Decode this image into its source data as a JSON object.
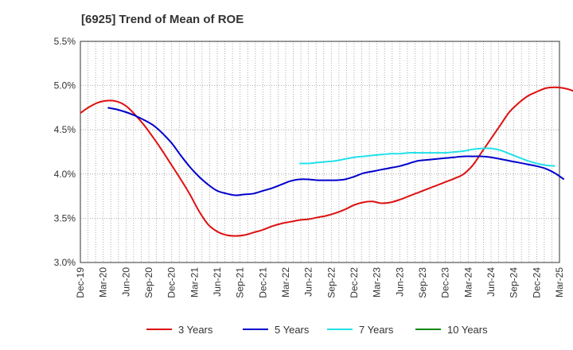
{
  "chart_data": {
    "type": "line",
    "title": "[6925]  Trend of Mean of ROE",
    "xlabel": "",
    "ylabel": "",
    "x_ticks": [
      "Dec-19",
      "Mar-20",
      "Jun-20",
      "Sep-20",
      "Dec-20",
      "Mar-21",
      "Jun-21",
      "Sep-21",
      "Dec-21",
      "Mar-22",
      "Jun-22",
      "Sep-22",
      "Dec-22",
      "Mar-23",
      "Jun-23",
      "Sep-23",
      "Dec-23",
      "Mar-24",
      "Jun-24",
      "Sep-24",
      "Dec-24",
      "Mar-25"
    ],
    "y_ticks": [
      "3.0%",
      "3.5%",
      "4.0%",
      "4.5%",
      "5.0%",
      "5.5%"
    ],
    "ylim": [
      3.0,
      5.5
    ],
    "grid": true,
    "legend_position": "bottom",
    "colors": {
      "3 Years": "#dd1111",
      "5 Years": "#0000cc",
      "7 Years": "#22e0e8",
      "10 Years": "#118811"
    },
    "series": [
      {
        "name": "3 Years",
        "values": [
          4.69,
          4.76,
          4.81,
          4.83,
          4.82,
          4.77,
          4.67,
          4.55,
          4.41,
          4.26,
          4.1,
          3.94,
          3.77,
          3.58,
          3.43,
          3.35,
          3.31,
          3.3,
          3.31,
          3.34,
          3.37,
          3.41,
          3.44,
          3.46,
          3.48,
          3.49,
          3.51,
          3.53,
          3.56,
          3.6,
          3.65,
          3.68,
          3.69,
          3.67,
          3.68,
          3.71,
          3.75,
          3.79,
          3.83,
          3.87,
          3.91,
          3.95,
          4.0,
          4.1,
          4.25,
          4.4,
          4.55,
          4.7,
          4.8,
          4.88,
          4.93,
          4.97,
          4.98,
          4.97,
          4.94,
          4.89
        ]
      },
      {
        "name": "5 Years",
        "values": [
          null,
          null,
          null,
          4.75,
          4.73,
          4.7,
          4.66,
          4.61,
          4.55,
          4.46,
          4.35,
          4.21,
          4.08,
          3.97,
          3.88,
          3.81,
          3.78,
          3.76,
          3.77,
          3.78,
          3.81,
          3.84,
          3.88,
          3.92,
          3.94,
          3.94,
          3.93,
          3.93,
          3.93,
          3.94,
          3.97,
          4.01,
          4.03,
          4.05,
          4.07,
          4.09,
          4.12,
          4.15,
          4.16,
          4.17,
          4.18,
          4.19,
          4.2,
          4.2,
          4.2,
          4.19,
          4.17,
          4.15,
          4.13,
          4.11,
          4.09,
          4.06,
          4.01,
          3.94
        ]
      },
      {
        "name": "7 Years",
        "values": [
          null,
          null,
          null,
          null,
          null,
          null,
          null,
          null,
          null,
          null,
          null,
          null,
          null,
          null,
          null,
          null,
          null,
          null,
          null,
          null,
          null,
          null,
          null,
          null,
          4.12,
          4.12,
          4.13,
          4.14,
          4.15,
          4.17,
          4.19,
          4.2,
          4.21,
          4.22,
          4.23,
          4.23,
          4.24,
          4.24,
          4.24,
          4.24,
          4.24,
          4.25,
          4.26,
          4.28,
          4.29,
          4.29,
          4.27,
          4.23,
          4.19,
          4.15,
          4.12,
          4.1,
          4.09
        ]
      },
      {
        "name": "10 Years",
        "values": []
      }
    ]
  }
}
